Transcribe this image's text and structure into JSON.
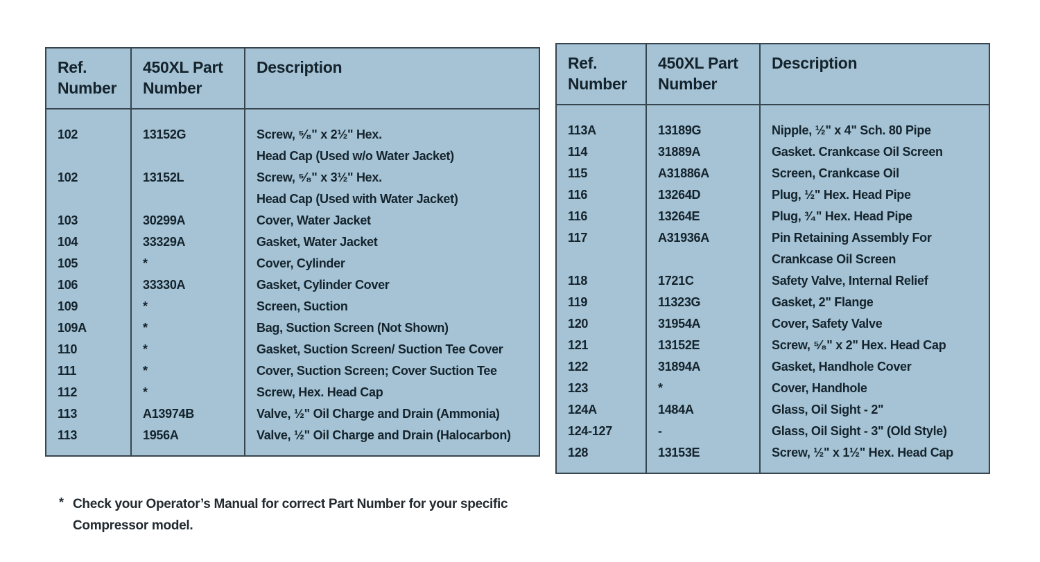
{
  "colors": {
    "table_fill": "#a5c3d5",
    "table_border": "#37454e",
    "table_text": "#14232c",
    "page_background": "#ffffff"
  },
  "tables": [
    {
      "id": "left",
      "headers": [
        "Ref.\nNumber",
        "450XL Part\nNumber",
        "Description"
      ],
      "rows": [
        {
          "ref": "102",
          "part": "13152G",
          "desc": "Screw, ⁵⁄₈\" x 2½\" Hex.\nHead Cap (Used w/o Water Jacket)"
        },
        {
          "ref": "102",
          "part": "13152L",
          "desc": "Screw, ⁵⁄₈\" x 3½\" Hex.\nHead Cap (Used with Water Jacket)"
        },
        {
          "ref": "103",
          "part": "30299A",
          "desc": "Cover, Water Jacket"
        },
        {
          "ref": "104",
          "part": "33329A",
          "desc": "Gasket, Water Jacket"
        },
        {
          "ref": "105",
          "part": "*",
          "desc": "Cover, Cylinder"
        },
        {
          "ref": "106",
          "part": "33330A",
          "desc": "Gasket, Cylinder Cover"
        },
        {
          "ref": "109",
          "part": "*",
          "desc": "Screen, Suction"
        },
        {
          "ref": "109A",
          "part": "*",
          "desc": "Bag, Suction Screen (Not Shown)"
        },
        {
          "ref": "110",
          "part": "*",
          "desc": "Gasket, Suction Screen/ Suction Tee Cover"
        },
        {
          "ref": "111",
          "part": "*",
          "desc": "Cover, Suction Screen; Cover Suction Tee"
        },
        {
          "ref": "112",
          "part": "*",
          "desc": "Screw, Hex. Head Cap"
        },
        {
          "ref": "113",
          "part": "A13974B",
          "desc": "Valve, ½\" Oil Charge and Drain (Ammonia)"
        },
        {
          "ref": "113",
          "part": "1956A",
          "desc": "Valve, ½\" Oil Charge and Drain (Halocarbon)"
        }
      ]
    },
    {
      "id": "right",
      "headers": [
        "Ref.\nNumber",
        "450XL Part\nNumber",
        "Description"
      ],
      "rows": [
        {
          "ref": "113A",
          "part": "13189G",
          "desc": "Nipple, ½\" x 4\" Sch. 80 Pipe"
        },
        {
          "ref": "114",
          "part": "31889A",
          "desc": "Gasket. Crankcase Oil Screen"
        },
        {
          "ref": "115",
          "part": "A31886A",
          "desc": "Screen, Crankcase Oil"
        },
        {
          "ref": "116",
          "part": "13264D",
          "desc": "Plug, ½\" Hex. Head Pipe"
        },
        {
          "ref": "116",
          "part": "13264E",
          "desc": "Plug, ³⁄₄\" Hex. Head Pipe"
        },
        {
          "ref": "117",
          "part": "A31936A",
          "desc": "Pin Retaining Assembly For\nCrankcase Oil Screen"
        },
        {
          "ref": "118",
          "part": "1721C",
          "desc": "Safety Valve, Internal Relief"
        },
        {
          "ref": "119",
          "part": "11323G",
          "desc": "Gasket, 2\" Flange"
        },
        {
          "ref": "120",
          "part": "31954A",
          "desc": "Cover, Safety Valve"
        },
        {
          "ref": "121",
          "part": "13152E",
          "desc": "Screw, ⁵⁄₈\" x 2\" Hex. Head Cap"
        },
        {
          "ref": "122",
          "part": "31894A",
          "desc": "Gasket, Handhole Cover"
        },
        {
          "ref": "123",
          "part": "*",
          "desc": "Cover, Handhole"
        },
        {
          "ref": "124A",
          "part": "1484A",
          "desc": "Glass, Oil Sight - 2\""
        },
        {
          "ref": "124-127",
          "part": "-",
          "desc": "Glass, Oil Sight - 3\" (Old Style)"
        },
        {
          "ref": "128",
          "part": "13153E",
          "desc": "Screw, ½\" x 1½\" Hex. Head Cap"
        }
      ]
    }
  ],
  "footnote": {
    "marker": "*",
    "text": "Check your Operator’s Manual for correct Part Number for your specific\nCompressor model."
  }
}
